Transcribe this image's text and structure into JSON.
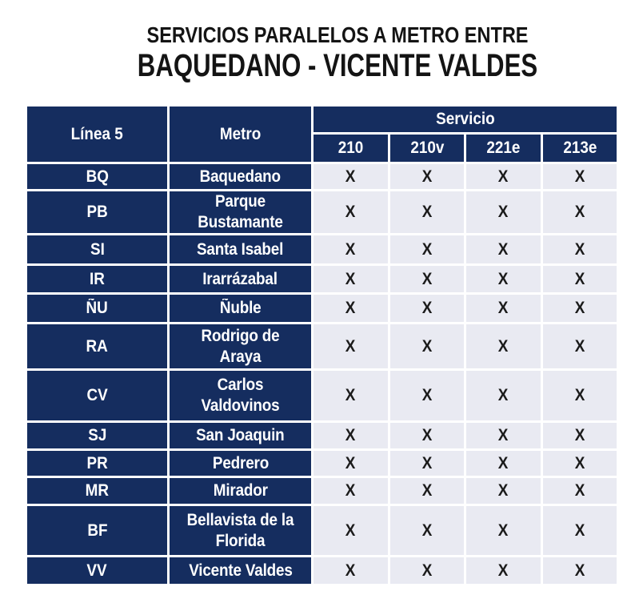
{
  "title": {
    "line1": "SERVICIOS PARALELOS A METRO ENTRE",
    "line2": "BAQUEDANO - VICENTE VALDES"
  },
  "table": {
    "col1_header": "Línea 5",
    "col2_header": "Metro",
    "service_header": "Servicio",
    "service_columns": [
      "210",
      "210v",
      "221e",
      "213e"
    ],
    "rows": [
      {
        "code": "BQ",
        "station": "Baquedano",
        "services": [
          "X",
          "X",
          "X",
          "X"
        ]
      },
      {
        "code": "PB",
        "station": "Parque Bustamante",
        "services": [
          "X",
          "X",
          "X",
          "X"
        ]
      },
      {
        "code": "SI",
        "station": "Santa Isabel",
        "services": [
          "X",
          "X",
          "X",
          "X"
        ]
      },
      {
        "code": "IR",
        "station": "Irarrázabal",
        "services": [
          "X",
          "X",
          "X",
          "X"
        ]
      },
      {
        "code": "ÑU",
        "station": "Ñuble",
        "services": [
          "X",
          "X",
          "X",
          "X"
        ]
      },
      {
        "code": "RA",
        "station": "Rodrigo de Araya",
        "services": [
          "X",
          "X",
          "X",
          "X"
        ]
      },
      {
        "code": "CV",
        "station": "Carlos Valdovinos",
        "services": [
          "X",
          "X",
          "X",
          "X"
        ]
      },
      {
        "code": "SJ",
        "station": "San Joaquin",
        "services": [
          "X",
          "X",
          "X",
          "X"
        ]
      },
      {
        "code": "PR",
        "station": "Pedrero",
        "services": [
          "X",
          "X",
          "X",
          "X"
        ]
      },
      {
        "code": "MR",
        "station": "Mirador",
        "services": [
          "X",
          "X",
          "X",
          "X"
        ]
      },
      {
        "code": "BF",
        "station": "Bellavista de la Florida",
        "services": [
          "X",
          "X",
          "X",
          "X"
        ]
      },
      {
        "code": "VV",
        "station": "Vicente Valdes",
        "services": [
          "X",
          "X",
          "X",
          "X"
        ]
      }
    ],
    "colors": {
      "header_bg": "#152D5F",
      "cell_bg": "#E9EAF2",
      "header_text": "#FFFFFF",
      "mark_text": "#1B1B1B"
    }
  }
}
